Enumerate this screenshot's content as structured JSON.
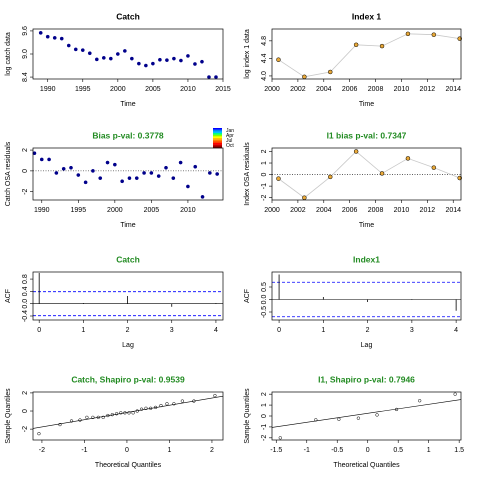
{
  "chart_data": [
    {
      "type": "scatter",
      "title": "Catch",
      "title_color": "#000000",
      "xlabel": "Time",
      "ylabel": "log catch data",
      "x": [
        1989,
        1990,
        1991,
        1992,
        1993,
        1994,
        1995,
        1996,
        1997,
        1998,
        1999,
        2000,
        2001,
        2002,
        2003,
        2004,
        2005,
        2006,
        2007,
        2008,
        2009,
        2010,
        2011,
        2012,
        2013,
        2014
      ],
      "values": [
        9.55,
        9.45,
        9.42,
        9.4,
        9.22,
        9.12,
        9.1,
        9.02,
        8.86,
        8.9,
        8.88,
        9.0,
        9.08,
        8.88,
        8.75,
        8.7,
        8.75,
        8.85,
        8.84,
        8.88,
        8.83,
        8.95,
        8.74,
        8.8,
        8.4,
        8.4
      ],
      "color": "#00008b",
      "line": false,
      "xlim": [
        1987.9,
        2015
      ],
      "ylim": [
        8.35,
        9.65
      ],
      "xticks": [
        1990,
        1995,
        2000,
        2005,
        2010,
        2015
      ],
      "yticks": [
        8.4,
        {
          "value": 9,
          "label": "9.0"
        },
        9.6
      ]
    },
    {
      "type": "scatter",
      "title": "Index 1",
      "title_color": "#000000",
      "xlabel": "Time",
      "ylabel": "log index 1 data",
      "x": [
        2000.5,
        2002.5,
        2004.5,
        2006.5,
        2008.5,
        2010.5,
        2012.5,
        2014.5
      ],
      "values": [
        4.37,
        3.98,
        4.09,
        4.71,
        4.68,
        4.96,
        4.94,
        4.85
      ],
      "color": "#e8a838",
      "line": true,
      "xlim": [
        2000,
        2014.6
      ],
      "ylim": [
        3.93,
        5.07
      ],
      "xticks": [
        2000,
        2002,
        2004,
        2006,
        2008,
        2010,
        2012,
        2014
      ],
      "yticks": [
        {
          "value": 4,
          "label": "4.0"
        },
        4.4,
        4.8
      ]
    },
    {
      "type": "scatter",
      "title": "Bias p-val: 0.3778",
      "title_color": "#228b22",
      "xlabel": "Time",
      "ylabel": "Catch OSA residuals",
      "x": [
        1989,
        1990,
        1991,
        1992,
        1993,
        1994,
        1995,
        1996,
        1997,
        1998,
        1999,
        2000,
        2001,
        2002,
        2003,
        2004,
        2005,
        2006,
        2007,
        2008,
        2009,
        2010,
        2011,
        2012,
        2013,
        2014
      ],
      "values": [
        1.7,
        1.1,
        1.1,
        -0.2,
        0.2,
        0.3,
        -0.4,
        -1.1,
        0.0,
        -0.7,
        0.8,
        0.6,
        -1.0,
        -0.7,
        -0.7,
        -0.2,
        -0.2,
        -0.5,
        0.3,
        -0.7,
        0.8,
        -1.5,
        0.4,
        -2.5,
        -0.2,
        -0.3
      ],
      "color": "#00008b",
      "line": false,
      "hline": 0,
      "xlim": [
        1988.8,
        2014.8
      ],
      "ylim": [
        -2.8,
        2.2
      ],
      "xticks": [
        1990,
        1995,
        2000,
        2005,
        2010
      ],
      "yticks": [
        -2,
        0,
        2
      ],
      "colorbar_labels": [
        "Jan",
        "Apr",
        "Jul",
        "Oct"
      ],
      "colorbar_colors": [
        "#0000ff",
        "#0080ff",
        "#00c0ff",
        "#00ff80",
        "#80ff00",
        "#ffff00",
        "#ffc000",
        "#ff8000",
        "#ff4000",
        "#ff0000",
        "#c00000",
        "#800000"
      ]
    },
    {
      "type": "scatter",
      "title": "I1 bias p-val: 0.7347",
      "title_color": "#228b22",
      "xlabel": "Time",
      "ylabel": "Index OSA residuals",
      "x": [
        2000.5,
        2002.5,
        2004.5,
        2006.5,
        2008.5,
        2010.5,
        2012.5,
        2014.5
      ],
      "values": [
        -0.35,
        -2.0,
        -0.2,
        2.0,
        0.1,
        1.4,
        0.6,
        -0.3
      ],
      "color": "#e8a838",
      "line": true,
      "hline": 0,
      "xlim": [
        2000,
        2014.6
      ],
      "ylim": [
        -2.2,
        2.3
      ],
      "xticks": [
        2000,
        2002,
        2004,
        2006,
        2008,
        2010,
        2012,
        2014
      ],
      "yticks": [
        -2,
        -1,
        0,
        1,
        2
      ]
    },
    {
      "type": "acf",
      "title": "Catch",
      "title_color": "#228b22",
      "xlabel": "Lag",
      "ylabel": "ACF",
      "x": [
        0,
        1,
        2,
        3,
        4
      ],
      "values": [
        1.0,
        0.02,
        0.25,
        -0.1,
        0.02
      ],
      "hline": 0,
      "ci_lines": [
        0.39,
        -0.39
      ],
      "ci_color": "#0000ff",
      "xlim": [
        -0.14,
        4.16
      ],
      "ylim": [
        -0.53,
        1.03
      ],
      "xticks": [
        0,
        1,
        2,
        3,
        4
      ],
      "yticks": [
        -0.4,
        {
          "value": 0,
          "label": "0.0"
        },
        0.4,
        0.8
      ]
    },
    {
      "type": "acf",
      "title": "Index1",
      "title_color": "#228b22",
      "xlabel": "Lag",
      "ylabel": "ACF",
      "x": [
        0,
        1,
        2,
        3,
        4
      ],
      "values": [
        1.0,
        0.1,
        -0.1,
        0.02,
        -0.45
      ],
      "hline": 0,
      "ci_lines": [
        0.69,
        -0.69
      ],
      "ci_color": "#0000ff",
      "xlim": [
        -0.16,
        4.11
      ],
      "ylim": [
        -0.82,
        1.1
      ],
      "xticks": [
        0,
        1,
        2,
        3,
        4
      ],
      "yticks": [
        -0.5,
        {
          "value": 0,
          "label": "0.0"
        },
        0.5
      ]
    },
    {
      "type": "qq",
      "title": "Catch, Shapiro p-val: 0.9539",
      "title_color": "#228b22",
      "xlabel": "Theoretical Quantiles",
      "ylabel": "Sample Quantiles",
      "x": [
        -2.07,
        -1.575,
        -1.304,
        -1.105,
        -0.942,
        -0.801,
        -0.674,
        -0.558,
        -0.448,
        -0.344,
        -0.243,
        -0.145,
        -0.048,
        0.048,
        0.145,
        0.243,
        0.344,
        0.448,
        0.558,
        0.674,
        0.801,
        0.942,
        1.105,
        1.304,
        1.575,
        2.07
      ],
      "values": [
        -2.5,
        -1.5,
        -1.1,
        -1.0,
        -0.7,
        -0.7,
        -0.7,
        -0.7,
        -0.5,
        -0.4,
        -0.3,
        -0.2,
        -0.2,
        -0.2,
        -0.2,
        0.0,
        0.2,
        0.3,
        0.3,
        0.4,
        0.6,
        0.8,
        0.8,
        1.1,
        1.1,
        1.7
      ],
      "xlim": [
        -2.21,
        2.26
      ],
      "ylim": [
        -3.2,
        2.1
      ],
      "xticks": [
        -2,
        -1,
        0,
        1,
        2
      ],
      "yticks": [
        -2,
        0,
        2
      ]
    },
    {
      "type": "qq",
      "title": "I1, Shapiro p-val: 0.7946",
      "title_color": "#228b22",
      "xlabel": "Theoretical Quantiles",
      "ylabel": "Sample Quantiles",
      "x": [
        -1.434,
        -0.852,
        -0.473,
        -0.153,
        0.153,
        0.473,
        0.852,
        1.434
      ],
      "values": [
        -2.0,
        -0.35,
        -0.3,
        -0.2,
        0.1,
        0.6,
        1.4,
        2.0
      ],
      "xlim": [
        -1.57,
        1.53
      ],
      "ylim": [
        -2.2,
        2.2
      ],
      "xticks": [
        -1.5,
        -1,
        -0.5,
        0,
        0.5,
        1,
        1.5
      ],
      "yticks": [
        -2,
        -1,
        0,
        1,
        2
      ]
    }
  ]
}
